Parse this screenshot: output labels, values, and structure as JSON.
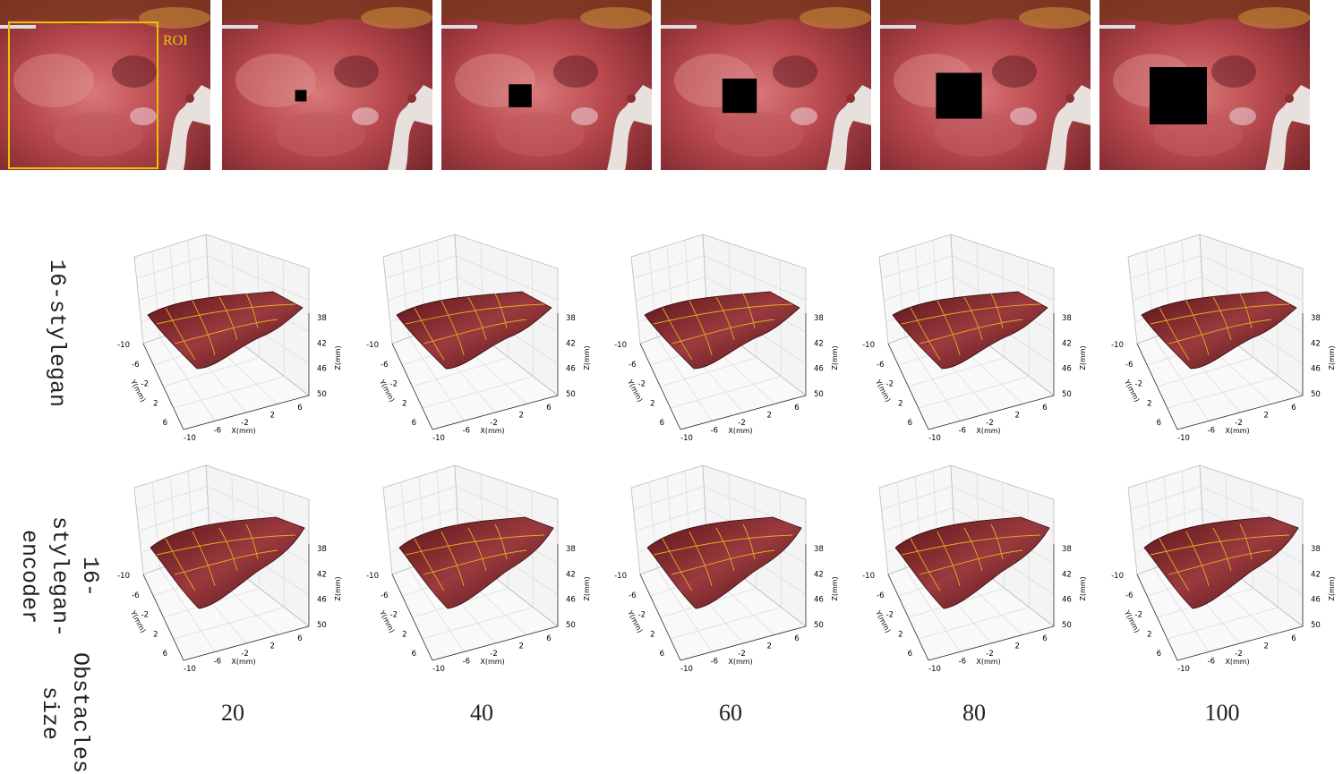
{
  "roi_label": "ROI",
  "rows": [
    "16-stylegan",
    "16-stylegan-encoder"
  ],
  "size_label": "Obstacles size",
  "sizes": [
    20,
    40,
    60,
    80,
    100
  ],
  "plot_axes": {
    "x_label": "X(mm)",
    "y_label": "Y(mm)",
    "z_label": "Z(mm)",
    "x_ticks": [
      -10,
      -6,
      -2,
      2,
      6
    ],
    "y_ticks": [
      -10,
      -6,
      -2,
      2,
      6
    ],
    "z_ticks": [
      38,
      42,
      46,
      50
    ]
  }
}
